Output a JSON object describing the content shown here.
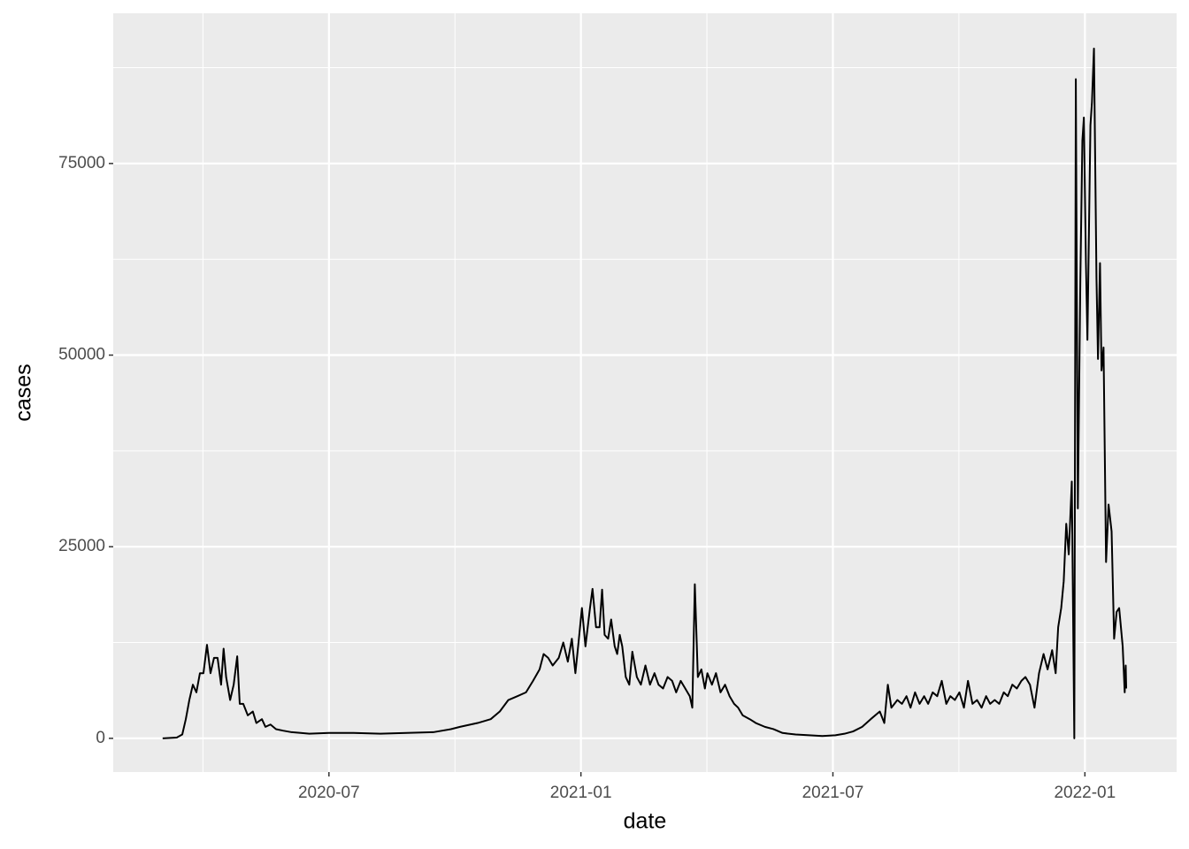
{
  "chart_data": {
    "type": "line",
    "x_label": "date",
    "y_label": "cases",
    "x": [
      2020.17,
      2020.198,
      2020.209,
      2020.216,
      2020.223,
      2020.23,
      2020.237,
      2020.244,
      2020.251,
      2020.258,
      2020.265,
      2020.272,
      2020.279,
      2020.286,
      2020.291,
      2020.296,
      2020.304,
      2020.311,
      2020.318,
      2020.323,
      2020.33,
      2020.339,
      2020.349,
      2020.356,
      2020.367,
      2020.374,
      2020.384,
      2020.395,
      2020.409,
      2020.426,
      2020.444,
      2020.461,
      2020.5,
      2020.549,
      2020.602,
      2020.654,
      2020.707,
      2020.742,
      2020.76,
      2020.795,
      2020.821,
      2020.839,
      2020.856,
      2020.874,
      2020.891,
      2020.905,
      2020.918,
      2020.926,
      2020.935,
      2020.944,
      2020.956,
      2020.965,
      2020.974,
      2020.982,
      2020.989,
      2020.996,
      2021.002,
      2021.009,
      2021.018,
      2021.023,
      2021.03,
      2021.037,
      2021.042,
      2021.047,
      2021.054,
      2021.06,
      2021.067,
      2021.072,
      2021.077,
      2021.082,
      2021.089,
      2021.096,
      2021.102,
      2021.111,
      2021.119,
      2021.128,
      2021.137,
      2021.146,
      2021.154,
      2021.163,
      2021.172,
      2021.181,
      2021.189,
      2021.198,
      2021.207,
      2021.216,
      2021.221,
      2021.226,
      2021.232,
      2021.239,
      2021.246,
      2021.251,
      2021.26,
      2021.268,
      2021.277,
      2021.286,
      2021.295,
      2021.304,
      2021.312,
      2021.321,
      2021.335,
      2021.347,
      2021.365,
      2021.382,
      2021.4,
      2021.426,
      2021.453,
      2021.479,
      2021.505,
      2021.523,
      2021.54,
      2021.558,
      2021.575,
      2021.593,
      2021.602,
      2021.609,
      2021.616,
      2021.628,
      2021.637,
      2021.646,
      2021.654,
      2021.663,
      2021.672,
      2021.681,
      2021.689,
      2021.698,
      2021.707,
      2021.716,
      2021.725,
      2021.733,
      2021.742,
      2021.751,
      2021.76,
      2021.768,
      2021.777,
      2021.786,
      2021.795,
      2021.804,
      2021.812,
      2021.821,
      2021.83,
      2021.839,
      2021.847,
      2021.856,
      2021.865,
      2021.874,
      2021.882,
      2021.891,
      2021.9,
      2021.909,
      2021.918,
      2021.926,
      2021.935,
      2021.942,
      2021.947,
      2021.953,
      2021.958,
      2021.963,
      2021.968,
      2021.974,
      2021.979,
      2021.982,
      2021.986,
      2021.991,
      2021.995,
      2021.998,
      2022.002,
      2022.005,
      2022.011,
      2022.014,
      2022.018,
      2022.023,
      2022.026,
      2022.03,
      2022.033,
      2022.037,
      2022.042,
      2022.047,
      2022.053,
      2022.058,
      2022.063,
      2022.068,
      2022.075,
      2022.079,
      2022.081,
      2022.082
    ],
    "values": [
      0,
      100,
      500,
      2500,
      5000,
      7000,
      6000,
      8500,
      8500,
      12200,
      8500,
      10500,
      10500,
      7000,
      11700,
      8000,
      5000,
      7000,
      10700,
      4500,
      4500,
      3000,
      3500,
      2000,
      2500,
      1500,
      1800,
      1200,
      1000,
      800,
      700,
      600,
      700,
      700,
      600,
      700,
      800,
      1200,
      1500,
      2000,
      2500,
      3500,
      5000,
      5500,
      6000,
      7500,
      9000,
      11000,
      10500,
      9500,
      10500,
      12500,
      10000,
      13000,
      8500,
      13000,
      17000,
      12000,
      17000,
      19500,
      14500,
      14500,
      19400,
      13500,
      13000,
      15500,
      12000,
      11000,
      13500,
      12000,
      8000,
      7000,
      11300,
      8000,
      7000,
      9500,
      7000,
      8500,
      7000,
      6500,
      8000,
      7500,
      6000,
      7500,
      6500,
      5500,
      4000,
      20100,
      8000,
      9000,
      6500,
      8500,
      7000,
      8500,
      6000,
      7000,
      5500,
      4500,
      4000,
      3000,
      2500,
      2000,
      1500,
      1200,
      700,
      500,
      400,
      300,
      400,
      600,
      900,
      1500,
      2500,
      3500,
      2000,
      7000,
      4000,
      5000,
      4500,
      5500,
      4000,
      6000,
      4500,
      5500,
      4500,
      6000,
      5500,
      7500,
      4500,
      5500,
      5000,
      6000,
      4000,
      7500,
      4500,
      5000,
      4000,
      5500,
      4500,
      5000,
      4500,
      6000,
      5500,
      7000,
      6500,
      7500,
      8000,
      7000,
      4000,
      8500,
      11000,
      9000,
      11500,
      8500,
      14500,
      17000,
      20500,
      28000,
      24000,
      33500,
      0,
      86000,
      30000,
      60000,
      78000,
      81000,
      62000,
      52000,
      80000,
      83000,
      90000,
      60000,
      49500,
      62000,
      48000,
      51000,
      23000,
      30500,
      27000,
      13000,
      16500,
      17000,
      12000,
      6000,
      9500,
      6500
    ],
    "color": "#000000",
    "xlim": [
      2020.072,
      2022.182
    ],
    "xticks": [
      {
        "value": 2020.5,
        "label": "2020-07"
      },
      {
        "value": 2021.0,
        "label": "2021-01"
      },
      {
        "value": 2021.5,
        "label": "2021-07"
      },
      {
        "value": 2022.0,
        "label": "2022-01"
      }
    ],
    "ylim": [
      -4400,
      94600
    ],
    "yticks": [
      0,
      25000,
      50000,
      75000
    ],
    "grid": true
  }
}
